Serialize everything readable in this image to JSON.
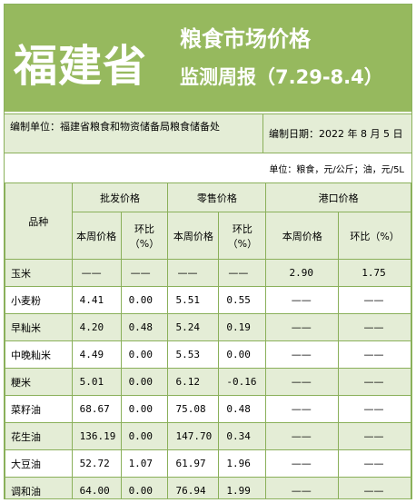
{
  "header": {
    "province": "福建省",
    "title_line1": "粮食市场价格",
    "title_line2": "监测周报（7.29-8.4）"
  },
  "meta": {
    "compiler": "编制单位：福建省粮食和物资储备局粮食储备处",
    "date": "编制日期：2022 年 8 月 5 日"
  },
  "unit": "单位：粮食，元/公斤；油，元/5L",
  "table": {
    "col_product": "品种",
    "group_wholesale": "批发价格",
    "group_retail": "零售价格",
    "group_port": "港口价格",
    "sub_price": "本周价格",
    "sub_change": "环比（%）",
    "rows": [
      {
        "name": "玉米",
        "w_price": "——",
        "w_chg": "——",
        "r_price": "——",
        "r_chg": "——",
        "p_price": "2.90",
        "p_chg": "1.75"
      },
      {
        "name": "小麦粉",
        "w_price": "4.41",
        "w_chg": "0.00",
        "r_price": "5.51",
        "r_chg": "0.55",
        "p_price": "——",
        "p_chg": "——"
      },
      {
        "name": "早籼米",
        "w_price": "4.20",
        "w_chg": "0.48",
        "r_price": "5.24",
        "r_chg": "0.19",
        "p_price": "——",
        "p_chg": "——"
      },
      {
        "name": "中晚籼米",
        "w_price": "4.49",
        "w_chg": "0.00",
        "r_price": "5.53",
        "r_chg": "0.00",
        "p_price": "——",
        "p_chg": "——"
      },
      {
        "name": "粳米",
        "w_price": "5.01",
        "w_chg": "0.00",
        "r_price": "6.12",
        "r_chg": "-0.16",
        "p_price": "——",
        "p_chg": "——"
      },
      {
        "name": "菜籽油",
        "w_price": "68.67",
        "w_chg": "0.00",
        "r_price": "75.08",
        "r_chg": "0.48",
        "p_price": "——",
        "p_chg": "——"
      },
      {
        "name": "花生油",
        "w_price": "136.19",
        "w_chg": "0.00",
        "r_price": "147.70",
        "r_chg": "0.34",
        "p_price": "——",
        "p_chg": "——"
      },
      {
        "name": "大豆油",
        "w_price": "52.72",
        "w_chg": "1.07",
        "r_price": "61.97",
        "r_chg": "1.96",
        "p_price": "——",
        "p_chg": "——"
      },
      {
        "name": "调和油",
        "w_price": "64.00",
        "w_chg": "0.00",
        "r_price": "76.94",
        "r_chg": "1.99",
        "p_price": "——",
        "p_chg": "——"
      }
    ]
  },
  "colors": {
    "header_green": "#96b95e",
    "light_green": "#e4edd6",
    "border_green": "#8ab05a"
  }
}
